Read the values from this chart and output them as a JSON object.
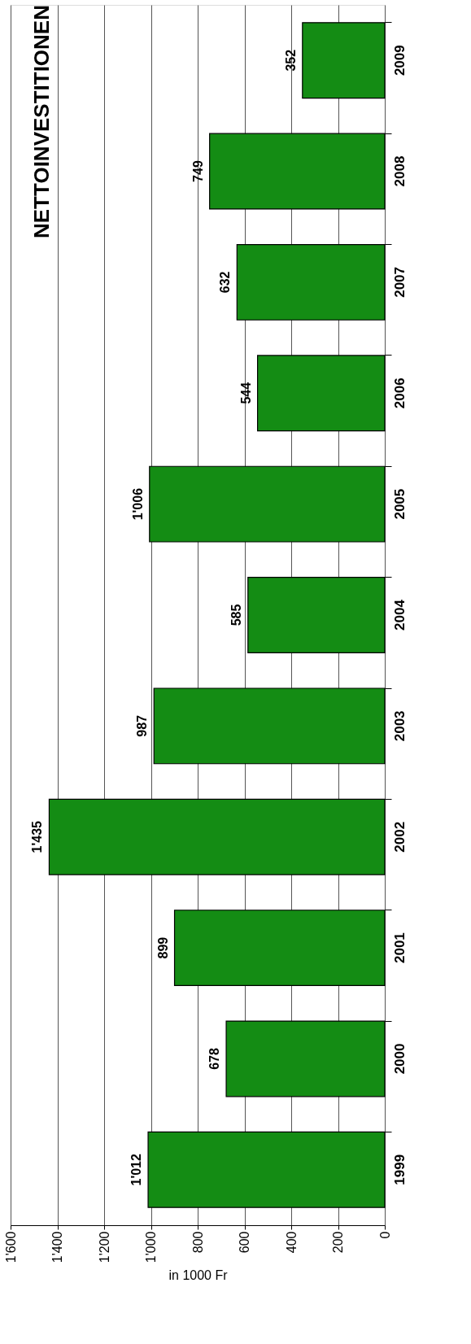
{
  "chart_data": {
    "type": "bar",
    "orientation": "horizontal",
    "title": "NETTOINVESTITIONEN",
    "xlabel": "in 1000 Fr",
    "categories": [
      "2009",
      "2008",
      "2007",
      "2006",
      "2005",
      "2004",
      "2003",
      "2002",
      "2001",
      "2000",
      "1999"
    ],
    "values": [
      352,
      749,
      632,
      544,
      1006,
      585,
      987,
      1435,
      899,
      678,
      1012
    ],
    "value_labels": [
      "352",
      "749",
      "632",
      "544",
      "1'006",
      "585",
      "987",
      "1'435",
      "899",
      "678",
      "1'012"
    ],
    "color": "#148c14",
    "xlim": [
      1600,
      0
    ],
    "xticks": [
      {
        "value": 1600,
        "label": "1'600"
      },
      {
        "value": 1400,
        "label": "1'400"
      },
      {
        "value": 1200,
        "label": "1'200"
      },
      {
        "value": 1000,
        "label": "1'000"
      },
      800,
      600,
      400,
      200,
      0
    ],
    "grid": "x"
  }
}
